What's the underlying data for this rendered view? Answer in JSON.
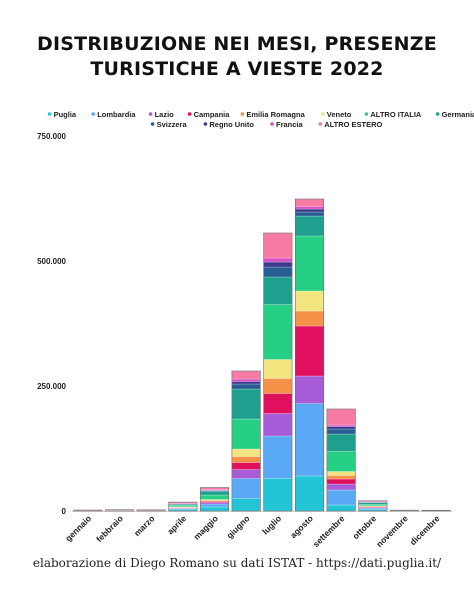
{
  "chart_data": {
    "type": "bar",
    "stacked": true,
    "title": "DISTRIBUZIONE NEI MESI, PRESENZE TURISTICHE A VIESTE 2022",
    "title_lines": [
      "DISTRIBUZIONE NEI MESI, PRESENZE",
      "TURISTICHE A VIESTE 2022"
    ],
    "categories": [
      "gennaio",
      "febbraio",
      "marzo",
      "aprile",
      "maggio",
      "giugno",
      "luglio",
      "agosto",
      "settembre",
      "ottobre",
      "novembre",
      "dicembre"
    ],
    "yticks": [
      "0",
      "250.000",
      "500.000",
      "750.000"
    ],
    "ytick_values": [
      0,
      250000,
      500000,
      750000
    ],
    "ylim": [
      0,
      750000
    ],
    "grid": false,
    "legend_position": "top",
    "series": [
      {
        "name": "Puglia",
        "color": "#22c4d6",
        "values": [
          300,
          700,
          500,
          3000,
          8000,
          25000,
          65000,
          70000,
          12000,
          3000,
          200,
          150
        ]
      },
      {
        "name": "Lombardia",
        "color": "#5aa9f5",
        "values": [
          200,
          300,
          300,
          2000,
          6000,
          40000,
          85000,
          145000,
          30000,
          2500,
          200,
          150
        ]
      },
      {
        "name": "Lazio",
        "color": "#a85bd6",
        "values": [
          100,
          100,
          100,
          1000,
          3000,
          18000,
          45000,
          55000,
          12000,
          1500,
          100,
          100
        ]
      },
      {
        "name": "Campania",
        "color": "#e0105e",
        "values": [
          100,
          100,
          100,
          800,
          2000,
          14000,
          40000,
          100000,
          10000,
          1200,
          100,
          100
        ]
      },
      {
        "name": "Emilia Romagna",
        "color": "#f4924a",
        "values": [
          100,
          100,
          100,
          800,
          2000,
          12000,
          30000,
          30000,
          7000,
          1000,
          100,
          100
        ]
      },
      {
        "name": "Veneto",
        "color": "#f2e57f",
        "values": [
          100,
          100,
          100,
          800,
          2000,
          15000,
          38000,
          40000,
          8000,
          1000,
          100,
          100
        ]
      },
      {
        "name": "ALTRO ITALIA",
        "color": "#27cf84",
        "values": [
          300,
          300,
          300,
          3000,
          9000,
          60000,
          110000,
          110000,
          40000,
          3500,
          300,
          200
        ]
      },
      {
        "name": "Germania",
        "color": "#1fa08e",
        "values": [
          200,
          200,
          200,
          2500,
          7000,
          60000,
          55000,
          40000,
          35000,
          3500,
          200,
          150
        ]
      },
      {
        "name": "Svizzera",
        "color": "#275d92",
        "values": [
          100,
          100,
          100,
          500,
          1500,
          10000,
          20000,
          8000,
          10000,
          800,
          100,
          100
        ]
      },
      {
        "name": "Regno Unito",
        "color": "#3d3a8c",
        "values": [
          100,
          100,
          100,
          500,
          1500,
          5000,
          10000,
          6000,
          5000,
          500,
          50,
          50
        ]
      },
      {
        "name": "Francia",
        "color": "#d94fc8",
        "values": [
          100,
          100,
          100,
          400,
          1000,
          5000,
          8000,
          5000,
          3000,
          400,
          50,
          50
        ]
      },
      {
        "name": "ALTRO ESTERO",
        "color": "#f77aa3",
        "values": [
          200,
          300,
          300,
          2500,
          4000,
          16000,
          50000,
          15000,
          32000,
          1500,
          100,
          100
        ]
      }
    ]
  },
  "footer": "elaborazione di Diego Romano su dati ISTAT - https://dati.puglia.it/"
}
